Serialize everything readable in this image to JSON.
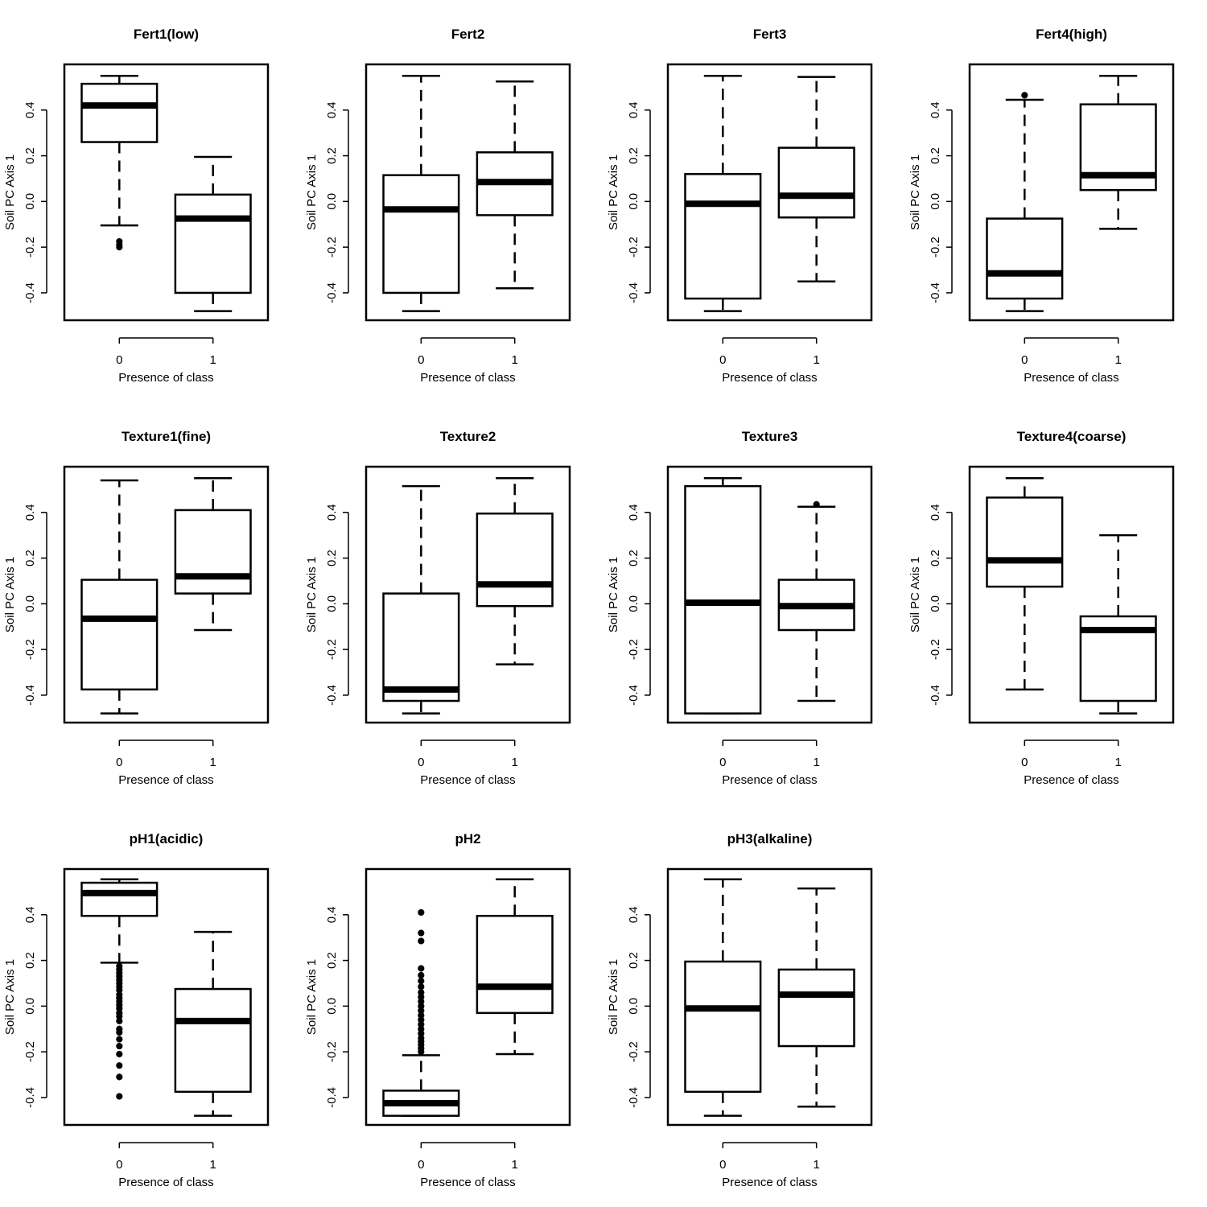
{
  "chart_data": [
    {
      "type": "boxplot",
      "title": "Fert1(low)",
      "xlabel": "Presence of class",
      "ylabel": "Soil PC Axis 1",
      "categories": [
        "0",
        "1"
      ],
      "yticks": [
        "-0.4",
        "-0.2",
        "0.0",
        "0.2",
        "0.4"
      ],
      "ylim": [
        -0.52,
        0.6
      ],
      "boxes": [
        {
          "category": "0",
          "whisker_low": -0.105,
          "q1": 0.26,
          "median": 0.42,
          "q3": 0.515,
          "whisker_high": 0.55,
          "outliers": [
            -0.175,
            -0.19,
            -0.2
          ]
        },
        {
          "category": "1",
          "whisker_low": -0.48,
          "q1": -0.4,
          "median": -0.075,
          "q3": 0.03,
          "whisker_high": 0.195,
          "outliers": []
        }
      ]
    },
    {
      "type": "boxplot",
      "title": "Fert2",
      "xlabel": "Presence of class",
      "ylabel": "Soil PC Axis 1",
      "categories": [
        "0",
        "1"
      ],
      "yticks": [
        "-0.4",
        "-0.2",
        "0.0",
        "0.2",
        "0.4"
      ],
      "ylim": [
        -0.52,
        0.6
      ],
      "boxes": [
        {
          "category": "0",
          "whisker_low": -0.48,
          "q1": -0.4,
          "median": -0.035,
          "q3": 0.115,
          "whisker_high": 0.55,
          "outliers": []
        },
        {
          "category": "1",
          "whisker_low": -0.38,
          "q1": -0.06,
          "median": 0.085,
          "q3": 0.215,
          "whisker_high": 0.525,
          "outliers": []
        }
      ]
    },
    {
      "type": "boxplot",
      "title": "Fert3",
      "xlabel": "Presence of class",
      "ylabel": "Soil PC Axis 1",
      "categories": [
        "0",
        "1"
      ],
      "yticks": [
        "-0.4",
        "-0.2",
        "0.0",
        "0.2",
        "0.4"
      ],
      "ylim": [
        -0.52,
        0.6
      ],
      "boxes": [
        {
          "category": "0",
          "whisker_low": -0.48,
          "q1": -0.425,
          "median": -0.01,
          "q3": 0.12,
          "whisker_high": 0.55,
          "outliers": []
        },
        {
          "category": "1",
          "whisker_low": -0.35,
          "q1": -0.07,
          "median": 0.025,
          "q3": 0.235,
          "whisker_high": 0.545,
          "outliers": []
        }
      ]
    },
    {
      "type": "boxplot",
      "title": "Fert4(high)",
      "xlabel": "Presence of class",
      "ylabel": "Soil PC Axis 1",
      "categories": [
        "0",
        "1"
      ],
      "yticks": [
        "-0.4",
        "-0.2",
        "0.0",
        "0.2",
        "0.4"
      ],
      "ylim": [
        -0.52,
        0.6
      ],
      "boxes": [
        {
          "category": "0",
          "whisker_low": -0.48,
          "q1": -0.425,
          "median": -0.315,
          "q3": -0.075,
          "whisker_high": 0.445,
          "outliers": [
            0.465
          ]
        },
        {
          "category": "1",
          "whisker_low": -0.12,
          "q1": 0.05,
          "median": 0.115,
          "q3": 0.425,
          "whisker_high": 0.55,
          "outliers": []
        }
      ]
    },
    {
      "type": "boxplot",
      "title": "Texture1(fine)",
      "xlabel": "Presence of class",
      "ylabel": "Soil PC Axis 1",
      "categories": [
        "0",
        "1"
      ],
      "yticks": [
        "-0.4",
        "-0.2",
        "0.0",
        "0.2",
        "0.4"
      ],
      "ylim": [
        -0.52,
        0.6
      ],
      "boxes": [
        {
          "category": "0",
          "whisker_low": -0.48,
          "q1": -0.375,
          "median": -0.065,
          "q3": 0.105,
          "whisker_high": 0.54,
          "outliers": []
        },
        {
          "category": "1",
          "whisker_low": -0.115,
          "q1": 0.045,
          "median": 0.12,
          "q3": 0.41,
          "whisker_high": 0.55,
          "outliers": []
        }
      ]
    },
    {
      "type": "boxplot",
      "title": "Texture2",
      "xlabel": "Presence of class",
      "ylabel": "Soil PC Axis 1",
      "categories": [
        "0",
        "1"
      ],
      "yticks": [
        "-0.4",
        "-0.2",
        "0.0",
        "0.2",
        "0.4"
      ],
      "ylim": [
        -0.52,
        0.6
      ],
      "boxes": [
        {
          "category": "0",
          "whisker_low": -0.48,
          "q1": -0.425,
          "median": -0.375,
          "q3": 0.045,
          "whisker_high": 0.515,
          "outliers": []
        },
        {
          "category": "1",
          "whisker_low": -0.265,
          "q1": -0.01,
          "median": 0.085,
          "q3": 0.395,
          "whisker_high": 0.55,
          "outliers": []
        }
      ]
    },
    {
      "type": "boxplot",
      "title": "Texture3",
      "xlabel": "Presence of class",
      "ylabel": "Soil PC Axis 1",
      "categories": [
        "0",
        "1"
      ],
      "yticks": [
        "-0.4",
        "-0.2",
        "0.0",
        "0.2",
        "0.4"
      ],
      "ylim": [
        -0.52,
        0.6
      ],
      "boxes": [
        {
          "category": "0",
          "whisker_low": -0.48,
          "q1": -0.48,
          "median": 0.005,
          "q3": 0.515,
          "whisker_high": 0.55,
          "outliers": []
        },
        {
          "category": "1",
          "whisker_low": -0.425,
          "q1": -0.115,
          "median": -0.01,
          "q3": 0.105,
          "whisker_high": 0.425,
          "outliers": [
            0.435
          ]
        }
      ]
    },
    {
      "type": "boxplot",
      "title": "Texture4(coarse)",
      "xlabel": "Presence of class",
      "ylabel": "Soil PC Axis 1",
      "categories": [
        "0",
        "1"
      ],
      "yticks": [
        "-0.4",
        "-0.2",
        "0.0",
        "0.2",
        "0.4"
      ],
      "ylim": [
        -0.52,
        0.6
      ],
      "boxes": [
        {
          "category": "0",
          "whisker_low": -0.375,
          "q1": 0.075,
          "median": 0.19,
          "q3": 0.465,
          "whisker_high": 0.55,
          "outliers": []
        },
        {
          "category": "1",
          "whisker_low": -0.48,
          "q1": -0.425,
          "median": -0.115,
          "q3": -0.055,
          "whisker_high": 0.3,
          "outliers": []
        }
      ]
    },
    {
      "type": "boxplot",
      "title": "pH1(acidic)",
      "xlabel": "Presence of class",
      "ylabel": "Soil PC Axis 1",
      "categories": [
        "0",
        "1"
      ],
      "yticks": [
        "-0.4",
        "-0.2",
        "0.0",
        "0.2",
        "0.4"
      ],
      "ylim": [
        -0.52,
        0.6
      ],
      "boxes": [
        {
          "category": "0",
          "whisker_low": 0.19,
          "q1": 0.395,
          "median": 0.495,
          "q3": 0.54,
          "whisker_high": 0.555,
          "outliers": [
            0.175,
            0.16,
            0.145,
            0.13,
            0.115,
            0.1,
            0.085,
            0.07,
            0.05,
            0.035,
            0.02,
            0.005,
            -0.01,
            -0.03,
            -0.045,
            -0.065,
            -0.1,
            -0.115,
            -0.145,
            -0.175,
            -0.21,
            -0.26,
            -0.31,
            -0.395
          ]
        },
        {
          "category": "1",
          "whisker_low": -0.48,
          "q1": -0.375,
          "median": -0.065,
          "q3": 0.075,
          "whisker_high": 0.325,
          "outliers": []
        }
      ]
    },
    {
      "type": "boxplot",
      "title": "pH2",
      "xlabel": "Presence of class",
      "ylabel": "Soil PC Axis 1",
      "categories": [
        "0",
        "1"
      ],
      "yticks": [
        "-0.4",
        "-0.2",
        "0.0",
        "0.2",
        "0.4"
      ],
      "ylim": [
        -0.52,
        0.6
      ],
      "boxes": [
        {
          "category": "0",
          "whisker_low": -0.48,
          "q1": -0.48,
          "median": -0.425,
          "q3": -0.37,
          "whisker_high": -0.215,
          "outliers": [
            -0.2,
            -0.185,
            -0.17,
            -0.155,
            -0.14,
            -0.12,
            -0.1,
            -0.08,
            -0.06,
            -0.04,
            -0.02,
            0.0,
            0.02,
            0.04,
            0.06,
            0.085,
            0.11,
            0.135,
            0.165,
            0.285,
            0.32,
            0.41
          ]
        },
        {
          "category": "1",
          "whisker_low": -0.21,
          "q1": -0.03,
          "median": 0.085,
          "q3": 0.395,
          "whisker_high": 0.555,
          "outliers": []
        }
      ]
    },
    {
      "type": "boxplot",
      "title": "pH3(alkaline)",
      "xlabel": "Presence of class",
      "ylabel": "Soil PC Axis 1",
      "categories": [
        "0",
        "1"
      ],
      "yticks": [
        "-0.4",
        "-0.2",
        "0.0",
        "0.2",
        "0.4"
      ],
      "ylim": [
        -0.52,
        0.6
      ],
      "boxes": [
        {
          "category": "0",
          "whisker_low": -0.48,
          "q1": -0.375,
          "median": -0.01,
          "q3": 0.195,
          "whisker_high": 0.555,
          "outliers": []
        },
        {
          "category": "1",
          "whisker_low": -0.44,
          "q1": -0.175,
          "median": 0.05,
          "q3": 0.16,
          "whisker_high": 0.515,
          "outliers": []
        }
      ]
    }
  ]
}
